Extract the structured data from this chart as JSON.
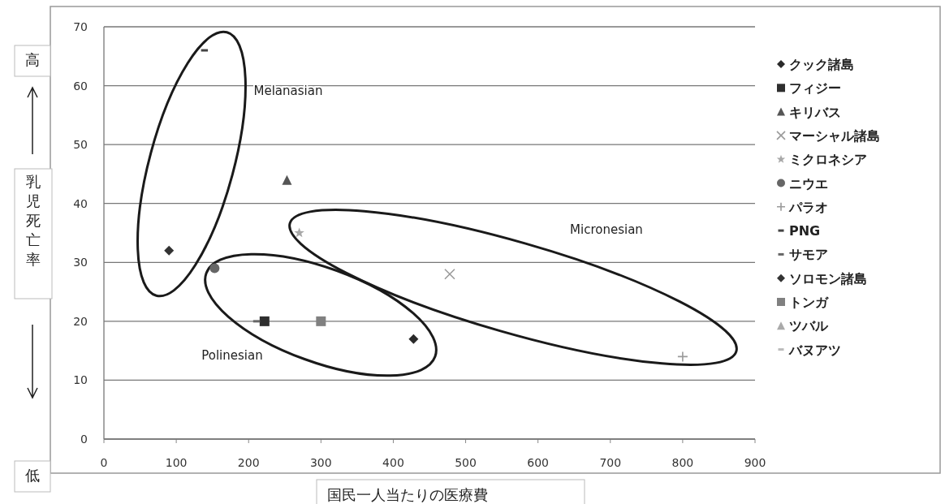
{
  "chart_data": {
    "type": "scatter",
    "xlabel": "国民一人当たりの医療費",
    "ylabel": "乳児死亡率",
    "xlim": [
      0,
      900
    ],
    "xticks": [
      0,
      100,
      200,
      300,
      400,
      500,
      600,
      700,
      800,
      900
    ],
    "ylim": [
      0,
      70
    ],
    "yticks": [
      0,
      10,
      20,
      30,
      40,
      50,
      60,
      70
    ],
    "grid": "y",
    "legend": "right",
    "annotations": [
      "高",
      "低",
      "Melanasian",
      "Polinesian",
      "Micronesian"
    ],
    "series": [
      {
        "name": "クック諸島",
        "color": "#2a2a2a",
        "marker": "diamond",
        "x": [
          428
        ],
        "values": [
          17
        ]
      },
      {
        "name": "フィジー",
        "color": "#2e2e2e",
        "marker": "square",
        "x": [
          222
        ],
        "values": [
          20
        ]
      },
      {
        "name": "キリバス",
        "color": "#555555",
        "marker": "triangle",
        "x": [
          253
        ],
        "values": [
          44
        ]
      },
      {
        "name": "マーシャル諸島",
        "color": "#9a9a9a",
        "marker": "cross",
        "x": [
          478
        ],
        "values": [
          28
        ]
      },
      {
        "name": "ミクロネシア",
        "color": "#a8a8a8",
        "marker": "star",
        "x": [
          270
        ],
        "values": [
          35
        ]
      },
      {
        "name": "ニウエ",
        "color": "#666666",
        "marker": "circle",
        "x": [
          153
        ],
        "values": [
          29
        ]
      },
      {
        "name": "パラオ",
        "color": "#9a9a9a",
        "marker": "plus",
        "x": [
          800
        ],
        "values": [
          14
        ]
      },
      {
        "name": "PNG",
        "color": "#444444",
        "x": [
          139
        ],
        "values": [
          66
        ]
      },
      {
        "name": "サモア",
        "color": "#666666",
        "x": [
          211
        ],
        "values": [
          20
        ]
      },
      {
        "name": "ソロモン諸島",
        "color": "#333333",
        "marker": "diamond",
        "x": [
          90
        ],
        "values": [
          32
        ]
      },
      {
        "name": "トンガ",
        "color": "#808080",
        "marker": "square",
        "x": [
          300
        ],
        "values": [
          20
        ]
      },
      {
        "name": "ツバル",
        "color": "#aaaaaa",
        "marker": "triangle",
        "x": [
          null
        ],
        "values": [
          null
        ]
      },
      {
        "name": "バヌアツ",
        "color": "#bbbbbb",
        "x": [
          null
        ],
        "values": [
          null
        ]
      }
    ]
  }
}
